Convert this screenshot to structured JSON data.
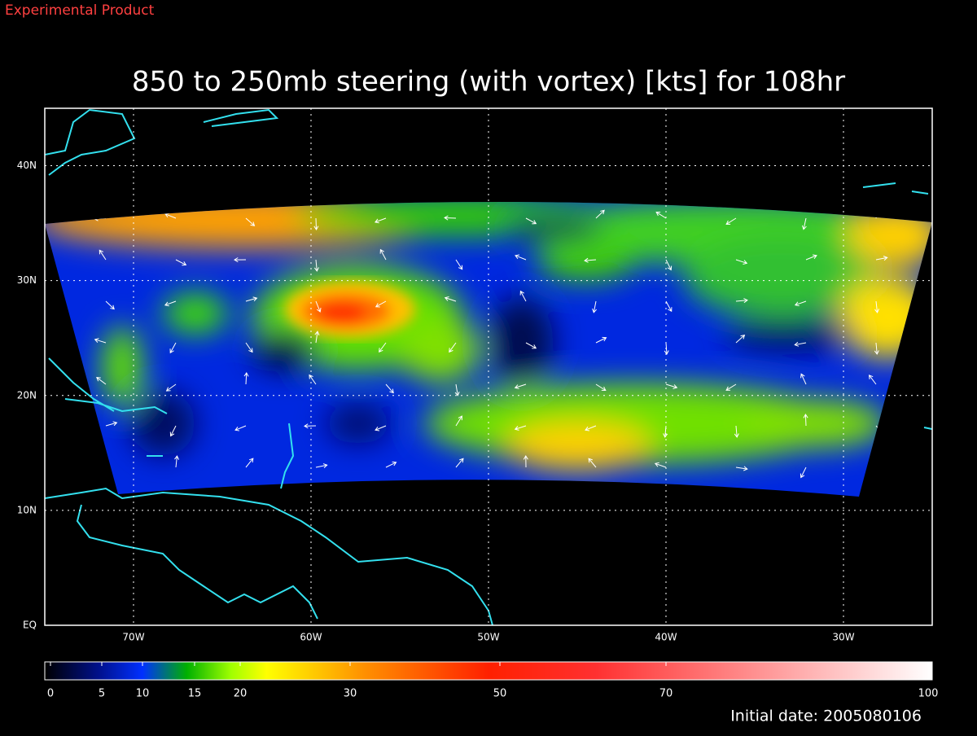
{
  "header": {
    "label": "Experimental Product"
  },
  "chart_data": {
    "type": "map",
    "title": "850 to 250mb steering (with vortex) [kts] for 108hr",
    "xlim": [
      -75,
      -25
    ],
    "ylim": [
      0,
      45
    ],
    "xticks": [
      {
        "value": -70,
        "label": "70W"
      },
      {
        "value": -60,
        "label": "60W"
      },
      {
        "value": -50,
        "label": "50W"
      },
      {
        "value": -40,
        "label": "40W"
      },
      {
        "value": -30,
        "label": "30W"
      }
    ],
    "yticks": [
      {
        "value": 0,
        "label": "EQ"
      },
      {
        "value": 10,
        "label": "10N"
      },
      {
        "value": 20,
        "label": "20N"
      },
      {
        "value": 30,
        "label": "30N"
      },
      {
        "value": 40,
        "label": "40N"
      }
    ],
    "grid": true,
    "colorbar_ticks": [
      0,
      5,
      10,
      15,
      20,
      30,
      50,
      70,
      100
    ]
  },
  "footer": {
    "label": "Initial date: 2005080106"
  }
}
